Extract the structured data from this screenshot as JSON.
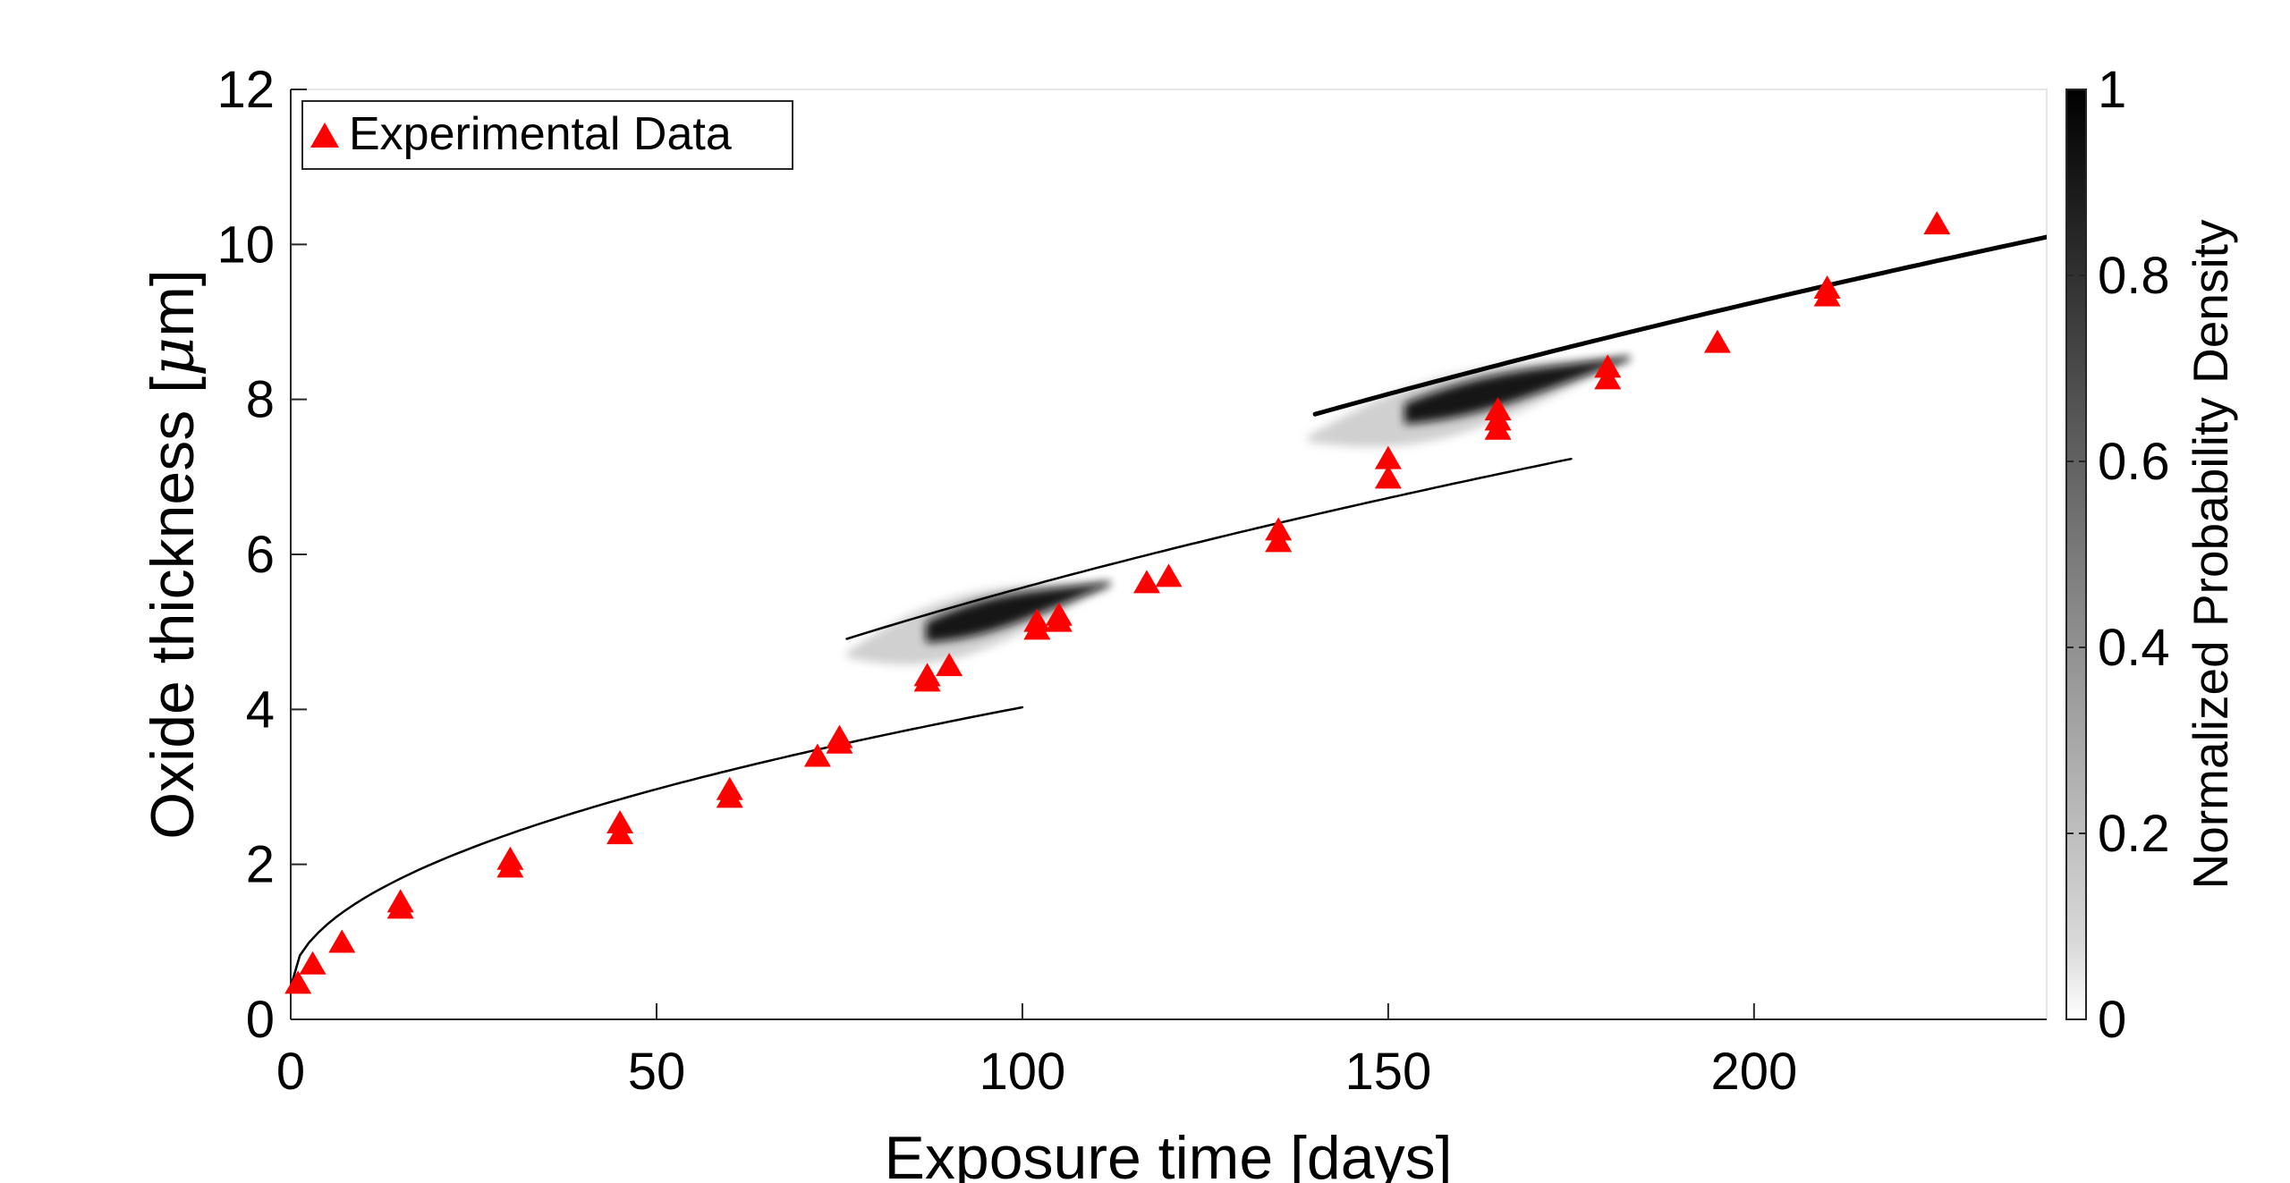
{
  "chart_data": {
    "type": "scatter",
    "xlabel": "Exposure time [days]",
    "ylabel_prefix": "Oxide thickness [",
    "ylabel_mu": "μ",
    "ylabel_suffix": "m]",
    "xlim": [
      0,
      240
    ],
    "ylim": [
      0,
      12
    ],
    "xticks": [
      0,
      50,
      100,
      150,
      200
    ],
    "yticks": [
      0,
      2,
      4,
      6,
      8,
      10,
      12
    ],
    "grid": false,
    "legend": {
      "position": "top-left",
      "entries": [
        "Experimental Data"
      ]
    },
    "series": [
      {
        "name": "Experimental Data",
        "marker": "triangle",
        "color": "#ff0000",
        "points": [
          [
            1,
            0.45
          ],
          [
            3,
            0.7
          ],
          [
            7,
            0.98
          ],
          [
            15,
            1.42
          ],
          [
            15,
            1.5
          ],
          [
            30,
            1.95
          ],
          [
            30,
            2.05
          ],
          [
            45,
            2.38
          ],
          [
            45,
            2.52
          ],
          [
            60,
            2.85
          ],
          [
            60,
            2.95
          ],
          [
            72,
            3.38
          ],
          [
            75,
            3.55
          ],
          [
            75,
            3.62
          ],
          [
            87,
            4.35
          ],
          [
            87,
            4.42
          ],
          [
            90,
            4.55
          ],
          [
            102,
            5.02
          ],
          [
            102,
            5.12
          ],
          [
            105,
            5.12
          ],
          [
            105,
            5.2
          ],
          [
            117,
            5.62
          ],
          [
            120,
            5.7
          ],
          [
            135,
            6.15
          ],
          [
            135,
            6.3
          ],
          [
            150,
            6.97
          ],
          [
            150,
            7.22
          ],
          [
            165,
            7.6
          ],
          [
            165,
            7.72
          ],
          [
            165,
            7.85
          ],
          [
            180,
            8.25
          ],
          [
            180,
            8.4
          ],
          [
            195,
            8.72
          ],
          [
            210,
            9.32
          ],
          [
            210,
            9.42
          ],
          [
            225,
            10.25
          ]
        ]
      }
    ],
    "model_segments": [
      {
        "x0": 0,
        "x1": 100,
        "scale": 0.3607,
        "tint": "#000000",
        "opacity": 1
      },
      {
        "x0": 76,
        "x1": 175,
        "scale": 0.515,
        "tint": "#000000",
        "opacity": 1
      },
      {
        "x0": 140,
        "x1": 240,
        "scale": 0.6245,
        "tint": "#000000",
        "opacity": 1
      }
    ],
    "density_regions": [
      {
        "x0": 76,
        "x1": 112,
        "scale": 0.492,
        "peak_x": 100,
        "level": 0.95
      },
      {
        "x0": 139,
        "x1": 183,
        "scale": 0.6,
        "peak_x": 175,
        "level": 0.95
      }
    ],
    "colorbar": {
      "label": "Normalized Probability Density",
      "range": [
        0,
        1
      ],
      "ticks": [
        "0",
        "0.2",
        "0.4",
        "0.6",
        "0.8",
        "1"
      ]
    }
  }
}
